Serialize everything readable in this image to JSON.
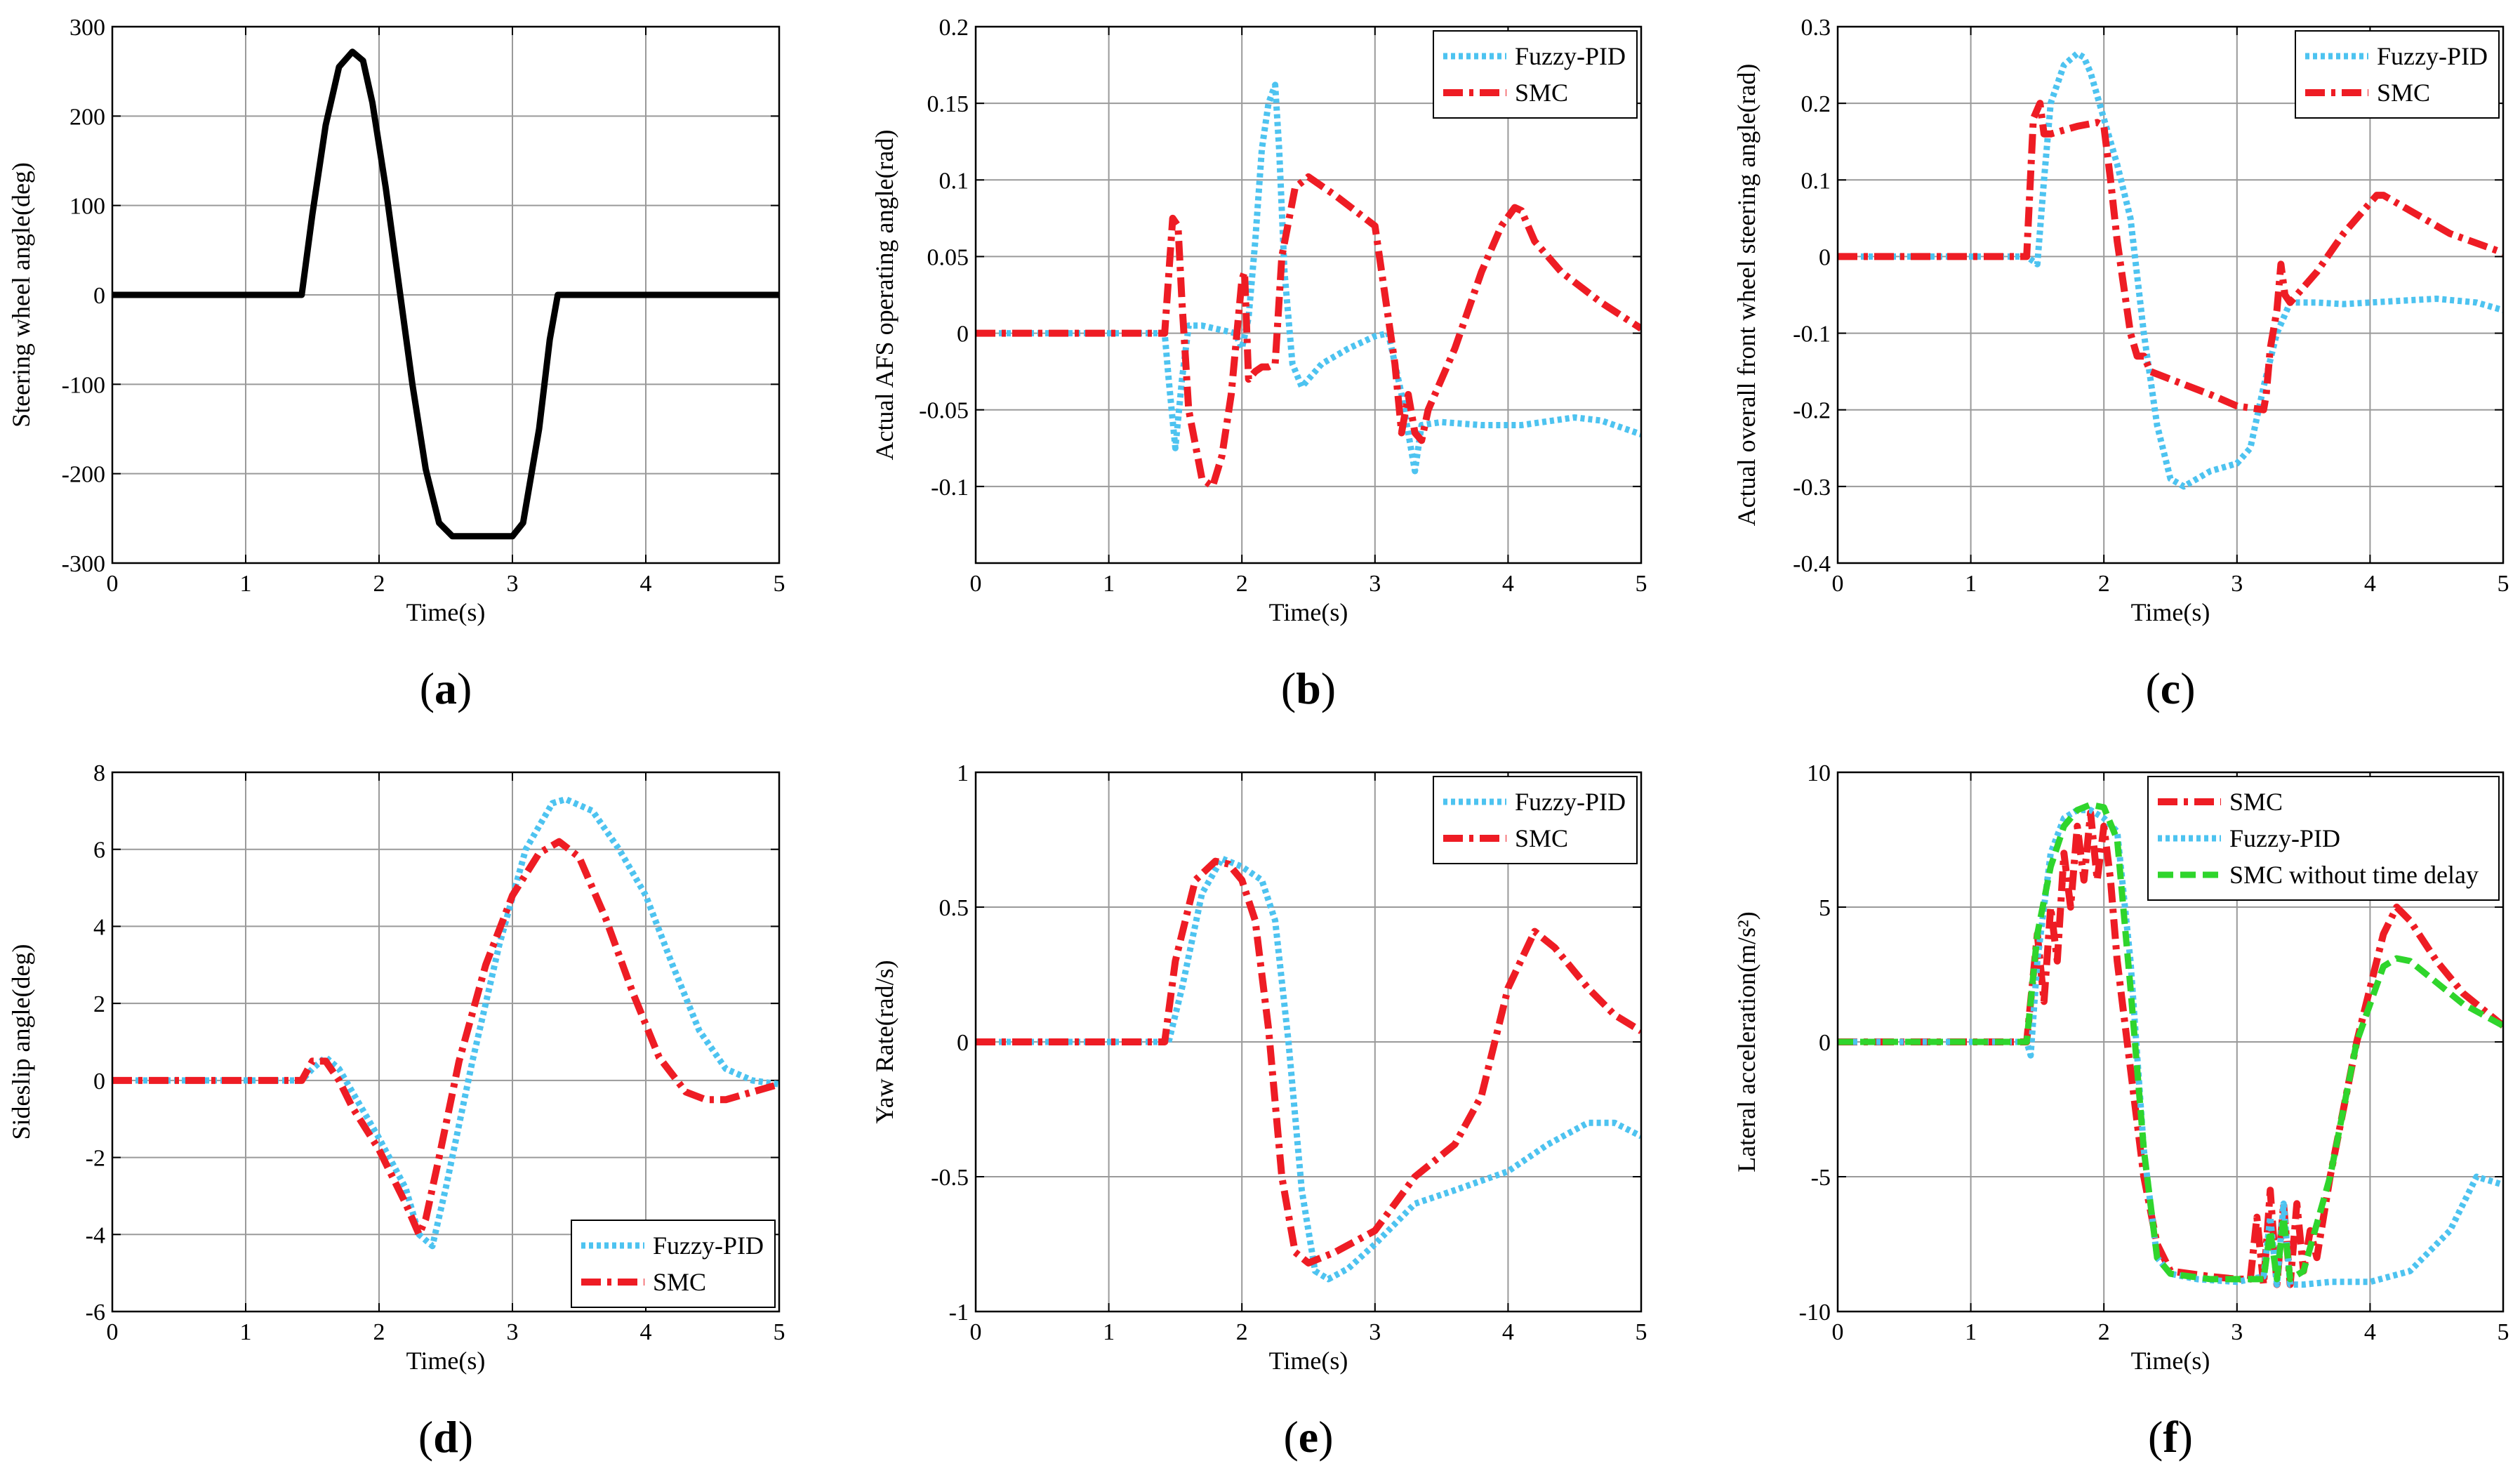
{
  "chart_data": [
    {
      "id": "a",
      "type": "line",
      "panel_label": "a",
      "xlabel": "Time(s)",
      "ylabel": "Steering wheel angle(deg)",
      "xlim": [
        0,
        5
      ],
      "ylim": [
        -300,
        300
      ],
      "xticks": [
        0,
        1,
        2,
        3,
        4,
        5
      ],
      "yticks": [
        -300,
        -200,
        -100,
        0,
        100,
        200,
        300
      ],
      "legend": null,
      "series": [
        {
          "name": "Steering wheel angle",
          "color": "#000000",
          "style": "solid",
          "x": [
            0,
            1.42,
            1.5,
            1.6,
            1.7,
            1.8,
            1.88,
            1.95,
            2.05,
            2.15,
            2.25,
            2.35,
            2.45,
            2.55,
            3.0,
            3.08,
            3.2,
            3.28,
            3.34,
            5
          ],
          "y": [
            0,
            0,
            90,
            190,
            255,
            272,
            262,
            215,
            120,
            10,
            -100,
            -195,
            -255,
            -270,
            -270,
            -255,
            -150,
            -50,
            0,
            0
          ]
        }
      ]
    },
    {
      "id": "b",
      "type": "line",
      "panel_label": "b",
      "xlabel": "Time(s)",
      "ylabel": "Actual AFS operating angle(rad)",
      "xlim": [
        0,
        5
      ],
      "ylim": [
        -0.15,
        0.2
      ],
      "xticks": [
        0,
        1,
        2,
        3,
        4,
        5
      ],
      "yticks": [
        -0.1,
        -0.05,
        0,
        0.05,
        0.1,
        0.15,
        0.2
      ],
      "ytick_labels": [
        "-0.1",
        "-0.05",
        "0",
        "0.05",
        "0.1",
        "0.15",
        "0.2"
      ],
      "legend": {
        "position": "top-right",
        "entries": [
          "Fuzzy-PID",
          "SMC"
        ]
      },
      "series": [
        {
          "name": "Fuzzy-PID",
          "color": "#4dc3f0",
          "style": "dotted",
          "x": [
            0,
            1.42,
            1.45,
            1.5,
            1.55,
            1.6,
            1.7,
            1.85,
            1.95,
            2.0,
            2.05,
            2.1,
            2.15,
            2.2,
            2.25,
            2.28,
            2.32,
            2.38,
            2.45,
            2.5,
            2.6,
            2.8,
            3.0,
            3.1,
            3.2,
            3.3,
            3.35,
            3.5,
            3.8,
            4.1,
            4.5,
            4.7,
            5
          ],
          "y": [
            0,
            0,
            -0.03,
            -0.075,
            -0.03,
            0.005,
            0.005,
            0.002,
            0.0,
            -0.01,
            0.01,
            0.06,
            0.12,
            0.15,
            0.162,
            0.12,
            0.04,
            -0.02,
            -0.035,
            -0.03,
            -0.02,
            -0.01,
            -0.002,
            0.0,
            -0.04,
            -0.09,
            -0.06,
            -0.058,
            -0.06,
            -0.06,
            -0.055,
            -0.057,
            -0.066
          ]
        },
        {
          "name": "SMC",
          "color": "#ee1c24",
          "style": "dashdot",
          "x": [
            0,
            1.42,
            1.48,
            1.52,
            1.55,
            1.6,
            1.7,
            1.78,
            1.85,
            1.92,
            2.0,
            2.02,
            2.05,
            2.1,
            2.15,
            2.2,
            2.25,
            2.3,
            2.4,
            2.5,
            2.7,
            2.85,
            3.0,
            3.05,
            3.15,
            3.2,
            3.25,
            3.3,
            3.35,
            3.4,
            3.6,
            3.8,
            3.95,
            4.05,
            4.1,
            4.2,
            4.4,
            4.7,
            5
          ],
          "y": [
            0,
            0,
            0.075,
            0.07,
            0.02,
            -0.05,
            -0.095,
            -0.1,
            -0.08,
            -0.04,
            0.035,
            0.04,
            -0.03,
            -0.025,
            -0.022,
            -0.022,
            -0.02,
            0.05,
            0.095,
            0.102,
            0.09,
            0.08,
            0.07,
            0.04,
            -0.02,
            -0.065,
            -0.04,
            -0.065,
            -0.07,
            -0.05,
            -0.01,
            0.04,
            0.07,
            0.082,
            0.08,
            0.06,
            0.04,
            0.02,
            0.003
          ]
        }
      ]
    },
    {
      "id": "c",
      "type": "line",
      "panel_label": "c",
      "xlabel": "Time(s)",
      "ylabel": "Actual overall front wheel steering angle(rad)",
      "xlim": [
        0,
        5
      ],
      "ylim": [
        -0.4,
        0.3
      ],
      "xticks": [
        0,
        1,
        2,
        3,
        4,
        5
      ],
      "yticks": [
        -0.4,
        -0.3,
        -0.2,
        -0.1,
        0,
        0.1,
        0.2,
        0.3
      ],
      "ytick_labels": [
        "-0.4",
        "-0.3",
        "-0.2",
        "-0.1",
        "0",
        "0.1",
        "0.2",
        "0.3"
      ],
      "legend": {
        "position": "top-right",
        "entries": [
          "Fuzzy-PID",
          "SMC"
        ]
      },
      "series": [
        {
          "name": "Fuzzy-PID",
          "color": "#4dc3f0",
          "style": "dotted",
          "x": [
            0,
            1.42,
            1.5,
            1.55,
            1.6,
            1.7,
            1.8,
            1.85,
            1.9,
            2.0,
            2.1,
            2.2,
            2.3,
            2.4,
            2.5,
            2.6,
            2.8,
            3.0,
            3.1,
            3.2,
            3.3,
            3.35,
            3.4,
            3.6,
            3.8,
            4.0,
            4.2,
            4.5,
            4.8,
            5
          ],
          "y": [
            0,
            0,
            -0.01,
            0.1,
            0.2,
            0.25,
            0.265,
            0.26,
            0.24,
            0.18,
            0.12,
            0.05,
            -0.1,
            -0.22,
            -0.29,
            -0.3,
            -0.28,
            -0.27,
            -0.25,
            -0.17,
            -0.1,
            -0.08,
            -0.06,
            -0.06,
            -0.062,
            -0.06,
            -0.058,
            -0.055,
            -0.06,
            -0.07
          ]
        },
        {
          "name": "SMC",
          "color": "#ee1c24",
          "style": "dashdot",
          "x": [
            0,
            1.42,
            1.47,
            1.52,
            1.55,
            1.6,
            1.8,
            1.95,
            2.0,
            2.05,
            2.1,
            2.2,
            2.25,
            2.3,
            2.35,
            2.5,
            2.8,
            3.0,
            3.2,
            3.22,
            3.25,
            3.3,
            3.33,
            3.36,
            3.4,
            3.6,
            3.8,
            4.0,
            4.05,
            4.1,
            4.3,
            4.6,
            5
          ],
          "y": [
            0,
            0,
            0.18,
            0.2,
            0.16,
            0.16,
            0.17,
            0.175,
            0.17,
            0.1,
            0.02,
            -0.1,
            -0.13,
            -0.13,
            -0.15,
            -0.16,
            -0.18,
            -0.195,
            -0.2,
            -0.18,
            -0.12,
            -0.07,
            -0.01,
            -0.05,
            -0.06,
            -0.02,
            0.03,
            0.07,
            0.08,
            0.08,
            0.06,
            0.03,
            0.005
          ]
        }
      ]
    },
    {
      "id": "d",
      "type": "line",
      "panel_label": "d",
      "xlabel": "Time(s)",
      "ylabel": "Sideslip angle(deg)",
      "xlim": [
        0,
        5
      ],
      "ylim": [
        -6,
        8
      ],
      "xticks": [
        0,
        1,
        2,
        3,
        4,
        5
      ],
      "yticks": [
        -6,
        -4,
        -2,
        0,
        2,
        4,
        6,
        8
      ],
      "legend": {
        "position": "bottom-right",
        "entries": [
          "Fuzzy-PID",
          "SMC"
        ]
      },
      "series": [
        {
          "name": "Fuzzy-PID",
          "color": "#4dc3f0",
          "style": "dotted",
          "x": [
            0,
            1.42,
            1.5,
            1.6,
            1.7,
            1.8,
            2.0,
            2.2,
            2.3,
            2.4,
            2.5,
            2.7,
            2.9,
            3.1,
            3.3,
            3.4,
            3.6,
            3.8,
            4.0,
            4.2,
            4.4,
            4.6,
            4.8,
            5
          ],
          "y": [
            0,
            0,
            0.3,
            0.6,
            0.3,
            -0.3,
            -1.5,
            -2.8,
            -4.0,
            -4.3,
            -2.8,
            0.5,
            3.5,
            6.0,
            7.2,
            7.3,
            7.0,
            6.0,
            4.8,
            3.0,
            1.3,
            0.3,
            0.0,
            -0.1
          ]
        },
        {
          "name": "SMC",
          "color": "#ee1c24",
          "style": "dashdot",
          "x": [
            0,
            1.42,
            1.5,
            1.6,
            1.7,
            1.8,
            2.0,
            2.2,
            2.3,
            2.35,
            2.45,
            2.6,
            2.8,
            3.0,
            3.2,
            3.35,
            3.5,
            3.7,
            3.9,
            4.1,
            4.3,
            4.45,
            4.6,
            4.8,
            5
          ],
          "y": [
            0,
            0,
            0.5,
            0.5,
            0.0,
            -0.7,
            -1.8,
            -3.2,
            -4.0,
            -3.6,
            -2.0,
            0.5,
            3.0,
            4.8,
            5.9,
            6.2,
            5.8,
            4.2,
            2.3,
            0.6,
            -0.3,
            -0.5,
            -0.5,
            -0.3,
            -0.1
          ]
        }
      ]
    },
    {
      "id": "e",
      "type": "line",
      "panel_label": "e",
      "xlabel": "Time(s)",
      "ylabel": "Yaw Rate(rad/s)",
      "xlim": [
        0,
        5
      ],
      "ylim": [
        -1,
        1
      ],
      "xticks": [
        0,
        1,
        2,
        3,
        4,
        5
      ],
      "yticks": [
        -1,
        -0.5,
        0,
        0.5,
        1
      ],
      "ytick_labels": [
        "-1",
        "-0.5",
        "0",
        "0.5",
        "1"
      ],
      "legend": {
        "position": "top-right",
        "entries": [
          "Fuzzy-PID",
          "SMC"
        ]
      },
      "series": [
        {
          "name": "Fuzzy-PID",
          "color": "#4dc3f0",
          "style": "dotted",
          "x": [
            0,
            1.45,
            1.55,
            1.7,
            1.85,
            2.0,
            2.15,
            2.25,
            2.35,
            2.45,
            2.55,
            2.65,
            2.8,
            3.0,
            3.3,
            3.6,
            4.0,
            4.3,
            4.6,
            4.8,
            5
          ],
          "y": [
            0,
            0,
            0.2,
            0.55,
            0.68,
            0.65,
            0.6,
            0.45,
            0.0,
            -0.55,
            -0.85,
            -0.88,
            -0.84,
            -0.75,
            -0.6,
            -0.55,
            -0.48,
            -0.38,
            -0.3,
            -0.3,
            -0.35
          ]
        },
        {
          "name": "SMC",
          "color": "#ee1c24",
          "style": "dashdot",
          "x": [
            0,
            1.42,
            1.5,
            1.65,
            1.8,
            1.9,
            2.0,
            2.1,
            2.2,
            2.3,
            2.4,
            2.5,
            2.7,
            3.0,
            3.3,
            3.6,
            3.8,
            4.0,
            4.2,
            4.35,
            4.6,
            4.8,
            5
          ],
          "y": [
            0,
            0,
            0.3,
            0.6,
            0.67,
            0.66,
            0.6,
            0.45,
            0.05,
            -0.5,
            -0.78,
            -0.82,
            -0.78,
            -0.7,
            -0.5,
            -0.38,
            -0.2,
            0.2,
            0.41,
            0.35,
            0.2,
            0.1,
            0.04
          ]
        }
      ]
    },
    {
      "id": "f",
      "type": "line",
      "panel_label": "f",
      "xlabel": "Time(s)",
      "ylabel": "Lateral acceleration(m/s²)",
      "xlim": [
        0,
        5
      ],
      "ylim": [
        -10,
        10
      ],
      "xticks": [
        0,
        1,
        2,
        3,
        4,
        5
      ],
      "yticks": [
        -10,
        -5,
        0,
        5,
        10
      ],
      "legend": {
        "position": "top-right",
        "entries": [
          "SMC",
          "Fuzzy-PID",
          "SMC without time delay"
        ]
      },
      "series": [
        {
          "name": "SMC",
          "color": "#ee1c24",
          "style": "dashdot",
          "x": [
            0,
            1.42,
            1.5,
            1.55,
            1.6,
            1.65,
            1.7,
            1.75,
            1.8,
            1.85,
            1.9,
            1.95,
            2.0,
            2.05,
            2.1,
            2.2,
            2.3,
            2.4,
            2.5,
            2.8,
            3.0,
            3.1,
            3.15,
            3.2,
            3.25,
            3.3,
            3.35,
            3.4,
            3.45,
            3.5,
            3.55,
            3.6,
            3.7,
            3.9,
            4.1,
            4.2,
            4.3,
            4.5,
            4.7,
            5
          ],
          "y": [
            0,
            0,
            4,
            1.5,
            5,
            3,
            7,
            5,
            8,
            6,
            8.5,
            6,
            8,
            6,
            3,
            -1,
            -5,
            -7.5,
            -8.5,
            -8.7,
            -8.8,
            -8.8,
            -6.5,
            -9,
            -5.5,
            -9,
            -6,
            -9,
            -6,
            -8.5,
            -7,
            -8,
            -5,
            0,
            4,
            5,
            4.5,
            3,
            1.8,
            0.6
          ]
        },
        {
          "name": "Fuzzy-PID",
          "color": "#4dc3f0",
          "style": "dotted",
          "x": [
            0,
            1.42,
            1.45,
            1.5,
            1.6,
            1.7,
            1.8,
            1.9,
            2.0,
            2.1,
            2.2,
            2.3,
            2.4,
            2.5,
            2.7,
            3.0,
            3.2,
            3.25,
            3.3,
            3.35,
            3.4,
            3.5,
            3.7,
            4.0,
            4.3,
            4.6,
            4.8,
            5
          ],
          "y": [
            0,
            0,
            -0.5,
            3,
            7,
            8.3,
            8.6,
            8.6,
            8.3,
            7.8,
            3,
            -4,
            -8,
            -8.6,
            -8.8,
            -8.9,
            -8.7,
            -6.5,
            -9,
            -6,
            -9,
            -9,
            -8.9,
            -8.9,
            -8.5,
            -7,
            -5,
            -5.3
          ]
        },
        {
          "name": "SMC without time delay",
          "color": "#2fd52c",
          "style": "dashed",
          "x": [
            0,
            1.42,
            1.5,
            1.6,
            1.7,
            1.8,
            1.9,
            2.0,
            2.1,
            2.2,
            2.3,
            2.4,
            2.5,
            2.8,
            3.0,
            3.2,
            3.25,
            3.3,
            3.35,
            3.4,
            3.5,
            3.7,
            3.9,
            4.1,
            4.2,
            4.3,
            4.5,
            4.7,
            5
          ],
          "y": [
            0,
            0,
            4,
            6.5,
            8,
            8.6,
            8.8,
            8.7,
            7.5,
            2,
            -4,
            -8,
            -8.6,
            -8.8,
            -8.8,
            -8.8,
            -7,
            -8.8,
            -6.5,
            -8.8,
            -8.5,
            -5,
            0,
            2.8,
            3.1,
            3.0,
            2.2,
            1.4,
            0.6
          ]
        }
      ]
    }
  ]
}
